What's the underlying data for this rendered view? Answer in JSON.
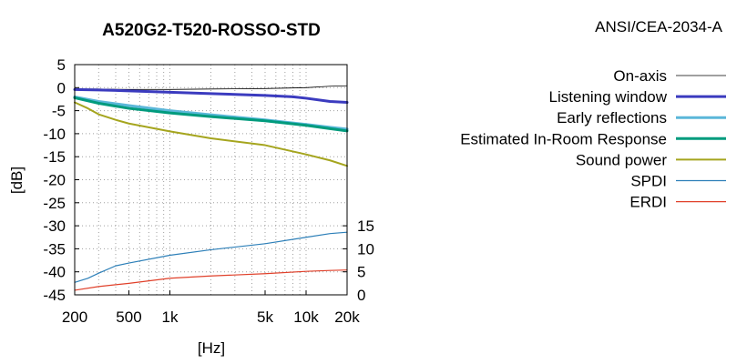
{
  "chart_data": {
    "type": "line",
    "title": "A520G2-T520-ROSSO-STD",
    "standard": "ANSI/CEA-2034-A",
    "xlabel": "[Hz]",
    "ylabel": "[dB]",
    "x_scale": "log",
    "xlim": [
      200,
      20000
    ],
    "ylim": [
      -45,
      5
    ],
    "y2lim": [
      0,
      50
    ],
    "grid": true,
    "legend_position": "right",
    "x_ticks": [
      {
        "value": 200,
        "label": "200"
      },
      {
        "value": 500,
        "label": "500"
      },
      {
        "value": 1000,
        "label": "1k"
      },
      {
        "value": 5000,
        "label": "5k"
      },
      {
        "value": 10000,
        "label": "10k"
      },
      {
        "value": 20000,
        "label": "20k"
      }
    ],
    "y_ticks": [
      {
        "value": 5,
        "label": "5"
      },
      {
        "value": 0,
        "label": "0"
      },
      {
        "value": -5,
        "label": "-5"
      },
      {
        "value": -10,
        "label": "-10"
      },
      {
        "value": -15,
        "label": "-15"
      },
      {
        "value": -20,
        "label": "-20"
      },
      {
        "value": -25,
        "label": "-25"
      },
      {
        "value": -30,
        "label": "-30"
      },
      {
        "value": -35,
        "label": "-35"
      },
      {
        "value": -40,
        "label": "-40"
      },
      {
        "value": -45,
        "label": "-45"
      }
    ],
    "y2_ticks": [
      {
        "value": 15,
        "label": "15"
      },
      {
        "value": 10,
        "label": "10"
      },
      {
        "value": 5,
        "label": "5"
      },
      {
        "value": 0,
        "label": "0"
      }
    ],
    "series": [
      {
        "name": "On-axis",
        "color": "#000000",
        "line_width": 0.8,
        "axis": "y",
        "x": [
          200,
          300,
          500,
          1000,
          2000,
          5000,
          10000,
          15000,
          20000
        ],
        "y": [
          -0.3,
          -0.3,
          -0.4,
          -0.4,
          -0.3,
          -0.2,
          0.0,
          0.3,
          0.4
        ]
      },
      {
        "name": "Listening window",
        "color": "#3b3bbf",
        "line_width": 3,
        "axis": "y",
        "x": [
          200,
          300,
          500,
          1000,
          2000,
          5000,
          8000,
          10000,
          15000,
          20000
        ],
        "y": [
          -0.4,
          -0.5,
          -0.7,
          -1.0,
          -1.3,
          -1.7,
          -2.0,
          -2.3,
          -3.0,
          -3.2
        ]
      },
      {
        "name": "Early reflections",
        "color": "#5bb7d9",
        "line_width": 3,
        "axis": "y",
        "x": [
          200,
          300,
          500,
          1000,
          2000,
          5000,
          10000,
          15000,
          20000
        ],
        "y": [
          -2.0,
          -3.0,
          -3.9,
          -5.0,
          -5.9,
          -7.0,
          -8.0,
          -8.6,
          -9.0
        ]
      },
      {
        "name": "Estimated In-Room Response",
        "color": "#009b7d",
        "line_width": 3,
        "axis": "y",
        "x": [
          200,
          300,
          500,
          1000,
          2000,
          5000,
          10000,
          15000,
          20000
        ],
        "y": [
          -2.2,
          -3.4,
          -4.5,
          -5.5,
          -6.3,
          -7.2,
          -8.2,
          -8.9,
          -9.4
        ]
      },
      {
        "name": "Sound power",
        "color": "#a5a51e",
        "line_width": 2,
        "axis": "y",
        "x": [
          200,
          250,
          300,
          400,
          500,
          1000,
          2000,
          5000,
          10000,
          15000,
          20000
        ],
        "y": [
          -3.2,
          -4.5,
          -5.8,
          -7.0,
          -7.8,
          -9.5,
          -11.0,
          -12.5,
          -14.5,
          -15.8,
          -17.0
        ]
      },
      {
        "name": "SPDI",
        "color": "#2c7fb8",
        "line_width": 1.2,
        "axis": "y2",
        "x": [
          200,
          250,
          300,
          400,
          500,
          1000,
          2000,
          5000,
          10000,
          15000,
          20000
        ],
        "y": [
          2.7,
          3.6,
          4.7,
          6.3,
          6.9,
          8.6,
          9.8,
          11.1,
          12.5,
          13.3,
          13.6
        ]
      },
      {
        "name": "ERDI",
        "color": "#e0402a",
        "line_width": 1.2,
        "axis": "y2",
        "x": [
          200,
          300,
          500,
          1000,
          2000,
          5000,
          10000,
          15000,
          20000
        ],
        "y": [
          1.0,
          1.8,
          2.5,
          3.6,
          4.1,
          4.6,
          5.1,
          5.3,
          5.4
        ]
      }
    ]
  }
}
